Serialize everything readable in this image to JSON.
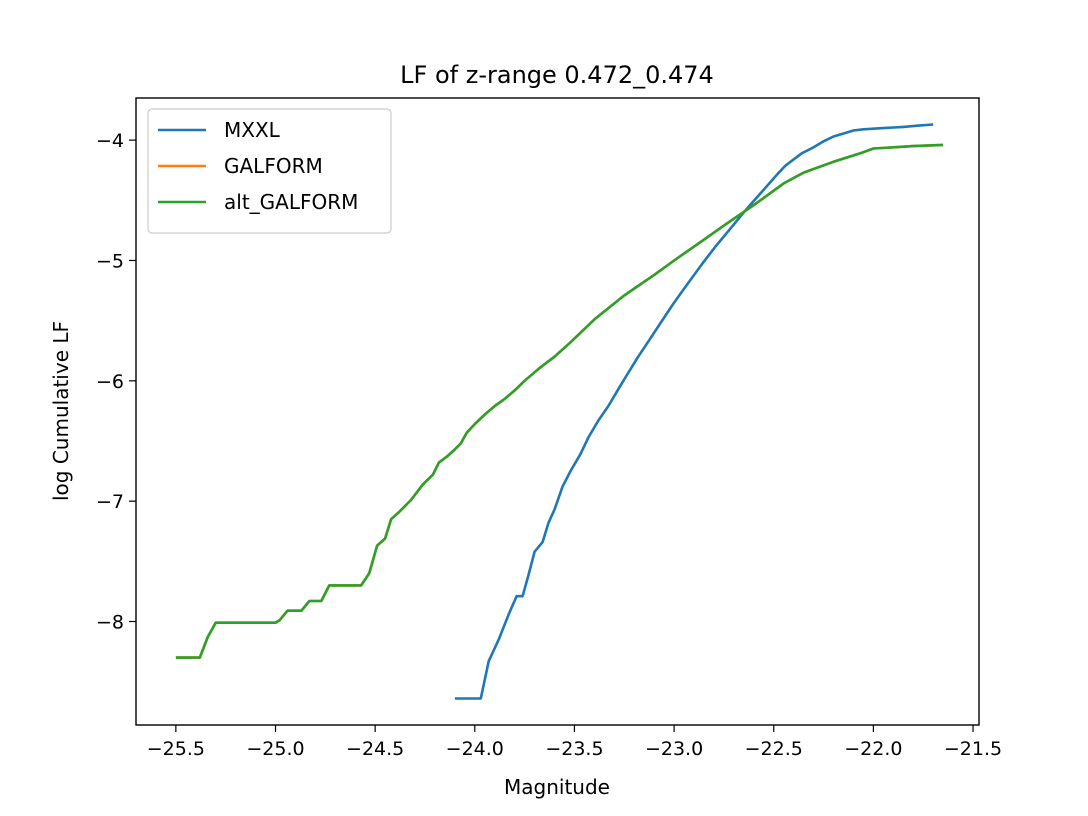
{
  "chart_data": {
    "type": "line",
    "title": "LF of z-range 0.472_0.474",
    "xlabel": "Magnitude",
    "ylabel": "log Cumulative LF",
    "xlim": [
      -25.7,
      -21.47
    ],
    "ylim": [
      -8.86,
      -3.65
    ],
    "xticks": [
      -25.5,
      -25.0,
      -24.5,
      -24.0,
      -23.5,
      -23.0,
      -22.5,
      -22.0,
      -21.5
    ],
    "xtick_labels": [
      "−25.5",
      "−25.0",
      "−24.5",
      "−24.0",
      "−23.5",
      "−23.0",
      "−22.5",
      "−22.0",
      "−21.5"
    ],
    "yticks": [
      -8,
      -7,
      -6,
      -5,
      -4
    ],
    "ytick_labels": [
      "−8",
      "−7",
      "−6",
      "−5",
      "−4"
    ],
    "grid": false,
    "legend_position": "top-left",
    "series": [
      {
        "name": "MXXL",
        "color": "#1f77b4",
        "x": [
          -24.1,
          -23.97,
          -23.93,
          -23.88,
          -23.83,
          -23.79,
          -23.76,
          -23.73,
          -23.7,
          -23.66,
          -23.63,
          -23.6,
          -23.56,
          -23.52,
          -23.47,
          -23.43,
          -23.38,
          -23.33,
          -23.28,
          -23.24,
          -23.18,
          -23.12,
          -23.06,
          -23.0,
          -22.93,
          -22.86,
          -22.79,
          -22.72,
          -22.64,
          -22.56,
          -22.48,
          -22.44,
          -22.36,
          -22.3,
          -22.25,
          -22.2,
          -22.16,
          -22.1,
          -22.05,
          -21.95,
          -21.85,
          -21.78,
          -21.7
        ],
        "y": [
          -8.64,
          -8.64,
          -8.33,
          -8.15,
          -7.94,
          -7.79,
          -7.79,
          -7.61,
          -7.42,
          -7.34,
          -7.18,
          -7.07,
          -6.88,
          -6.75,
          -6.61,
          -6.47,
          -6.33,
          -6.21,
          -6.07,
          -5.96,
          -5.8,
          -5.65,
          -5.5,
          -5.35,
          -5.19,
          -5.03,
          -4.88,
          -4.74,
          -4.58,
          -4.43,
          -4.28,
          -4.21,
          -4.11,
          -4.06,
          -4.01,
          -3.97,
          -3.95,
          -3.92,
          -3.91,
          -3.9,
          -3.89,
          -3.88,
          -3.87
        ]
      },
      {
        "name": "GALFORM",
        "color": "#ff7f0e",
        "x": [
          -25.5,
          -25.38,
          -25.34,
          -25.3,
          -25.25,
          -25.0,
          -24.98,
          -24.94,
          -24.9,
          -24.87,
          -24.83,
          -24.77,
          -24.73,
          -24.57,
          -24.53,
          -24.49,
          -24.45,
          -24.42,
          -24.38,
          -24.32,
          -24.26,
          -24.21,
          -24.18,
          -24.14,
          -24.1,
          -24.07,
          -24.04,
          -24.0,
          -23.95,
          -23.9,
          -23.85,
          -23.8,
          -23.75,
          -23.68,
          -23.6,
          -23.52,
          -23.4,
          -23.25,
          -23.1,
          -23.0,
          -22.87,
          -22.75,
          -22.6,
          -22.5,
          -22.45,
          -22.35,
          -22.2,
          -22.05,
          -22.0,
          -21.9,
          -21.8,
          -21.65
        ],
        "y": [
          -8.3,
          -8.3,
          -8.13,
          -8.01,
          -8.01,
          -8.01,
          -7.99,
          -7.91,
          -7.91,
          -7.91,
          -7.83,
          -7.83,
          -7.7,
          -7.7,
          -7.6,
          -7.37,
          -7.31,
          -7.15,
          -7.09,
          -6.99,
          -6.86,
          -6.78,
          -6.68,
          -6.63,
          -6.57,
          -6.52,
          -6.43,
          -6.36,
          -6.28,
          -6.21,
          -6.15,
          -6.08,
          -6.0,
          -5.9,
          -5.8,
          -5.68,
          -5.49,
          -5.29,
          -5.12,
          -5.0,
          -4.85,
          -4.71,
          -4.54,
          -4.42,
          -4.36,
          -4.27,
          -4.18,
          -4.1,
          -4.07,
          -4.06,
          -4.05,
          -4.04
        ]
      },
      {
        "name": "alt_GALFORM",
        "color": "#2ca02c",
        "x": [
          -25.5,
          -25.38,
          -25.34,
          -25.3,
          -25.25,
          -25.0,
          -24.98,
          -24.94,
          -24.9,
          -24.87,
          -24.83,
          -24.77,
          -24.73,
          -24.57,
          -24.53,
          -24.49,
          -24.45,
          -24.42,
          -24.38,
          -24.32,
          -24.26,
          -24.21,
          -24.18,
          -24.14,
          -24.1,
          -24.07,
          -24.04,
          -24.0,
          -23.95,
          -23.9,
          -23.85,
          -23.8,
          -23.75,
          -23.68,
          -23.6,
          -23.52,
          -23.4,
          -23.25,
          -23.1,
          -23.0,
          -22.87,
          -22.75,
          -22.6,
          -22.5,
          -22.45,
          -22.35,
          -22.2,
          -22.05,
          -22.0,
          -21.9,
          -21.8,
          -21.65
        ],
        "y": [
          -8.3,
          -8.3,
          -8.13,
          -8.01,
          -8.01,
          -8.01,
          -7.99,
          -7.91,
          -7.91,
          -7.91,
          -7.83,
          -7.83,
          -7.7,
          -7.7,
          -7.6,
          -7.37,
          -7.31,
          -7.15,
          -7.09,
          -6.99,
          -6.86,
          -6.78,
          -6.68,
          -6.63,
          -6.57,
          -6.52,
          -6.43,
          -6.36,
          -6.28,
          -6.21,
          -6.15,
          -6.08,
          -6.0,
          -5.9,
          -5.8,
          -5.68,
          -5.49,
          -5.29,
          -5.12,
          -5.0,
          -4.85,
          -4.71,
          -4.54,
          -4.42,
          -4.36,
          -4.27,
          -4.18,
          -4.1,
          -4.07,
          -4.06,
          -4.05,
          -4.04
        ]
      }
    ]
  }
}
